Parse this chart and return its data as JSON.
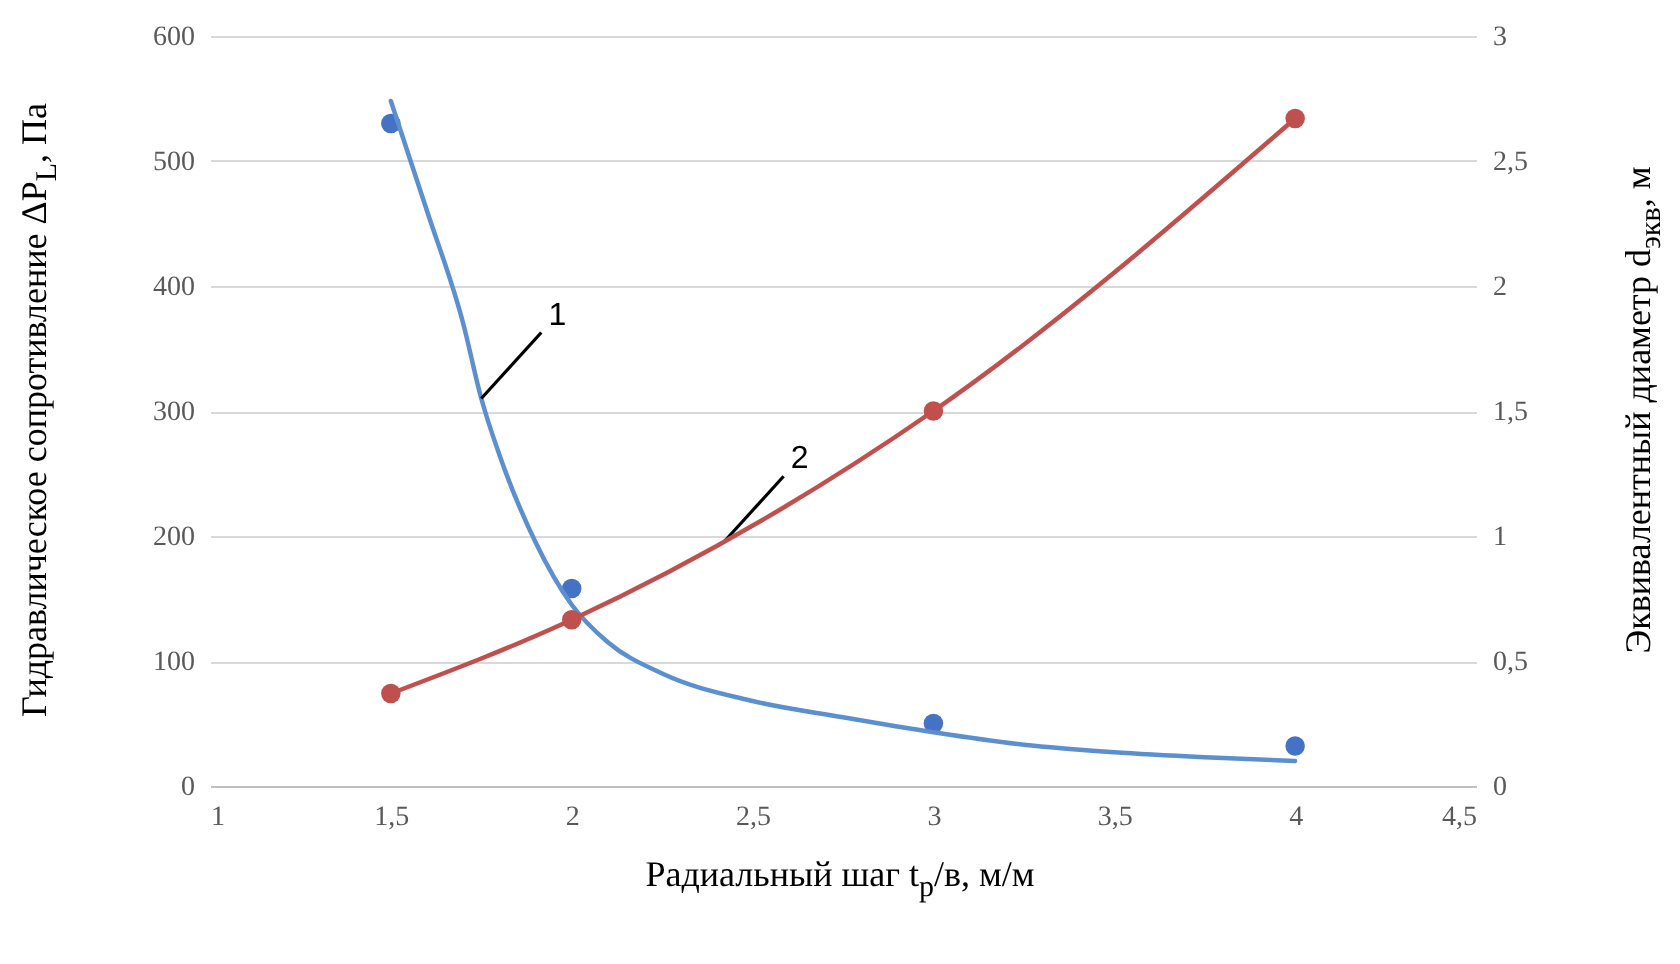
{
  "chart_data": {
    "type": "line",
    "xlabel": "Радиальный шаг t$_{р}$/в, м/м",
    "ylabel": "Гидравлическое сопротивление ΔP$_{L}$, Па",
    "y2label": "Эквивалентный диаметр  d$_{экв}$, м",
    "xlim": [
      1,
      4.5
    ],
    "xticks": [
      1,
      {
        "value": 1.5,
        "label": "1,5"
      },
      2,
      {
        "value": 2.5,
        "label": "2,5"
      },
      3,
      {
        "value": 3.5,
        "label": "3,5"
      },
      4,
      {
        "value": 4.5,
        "label": "4,5"
      }
    ],
    "ylim": [
      0,
      600
    ],
    "yticks": [
      0,
      100,
      200,
      300,
      400,
      500,
      600
    ],
    "y2lim": [
      0,
      3
    ],
    "y2ticks": [
      0,
      {
        "value": 0.5,
        "label": "0,5"
      },
      1,
      {
        "value": 1.5,
        "label": "1,5"
      },
      2,
      {
        "value": 2.5,
        "label": "2,5"
      },
      3
    ],
    "grid": "y",
    "marker": "circle",
    "series": [
      {
        "type": "scatter",
        "color": "#4472c4",
        "x": [
          1.5,
          2,
          3,
          4
        ],
        "values": [
          530,
          158,
          50,
          32
        ]
      },
      {
        "type": "line",
        "color": "#5b8fd0",
        "marker": "none",
        "x": [
          1.5,
          1.6,
          1.7,
          1.75,
          1.8,
          1.9,
          2,
          2.1,
          2.25,
          2.5,
          2.75,
          3,
          3.25,
          3.5,
          3.75,
          4
        ],
        "values": [
          548,
          460,
          370,
          310,
          265,
          195,
          145,
          115,
          90,
          68,
          55,
          43,
          33,
          27,
          23,
          20
        ]
      },
      {
        "color": "#c0504d",
        "axis": "y2",
        "x": [
          1.5,
          2,
          3,
          4
        ],
        "values": [
          0.37,
          0.665,
          1.5,
          2.67
        ]
      }
    ],
    "annotations": [
      {
        "text": "1",
        "x": 1.75,
        "y": 310
      },
      {
        "text": "2",
        "x": 2.42,
        "y": 195
      }
    ]
  }
}
